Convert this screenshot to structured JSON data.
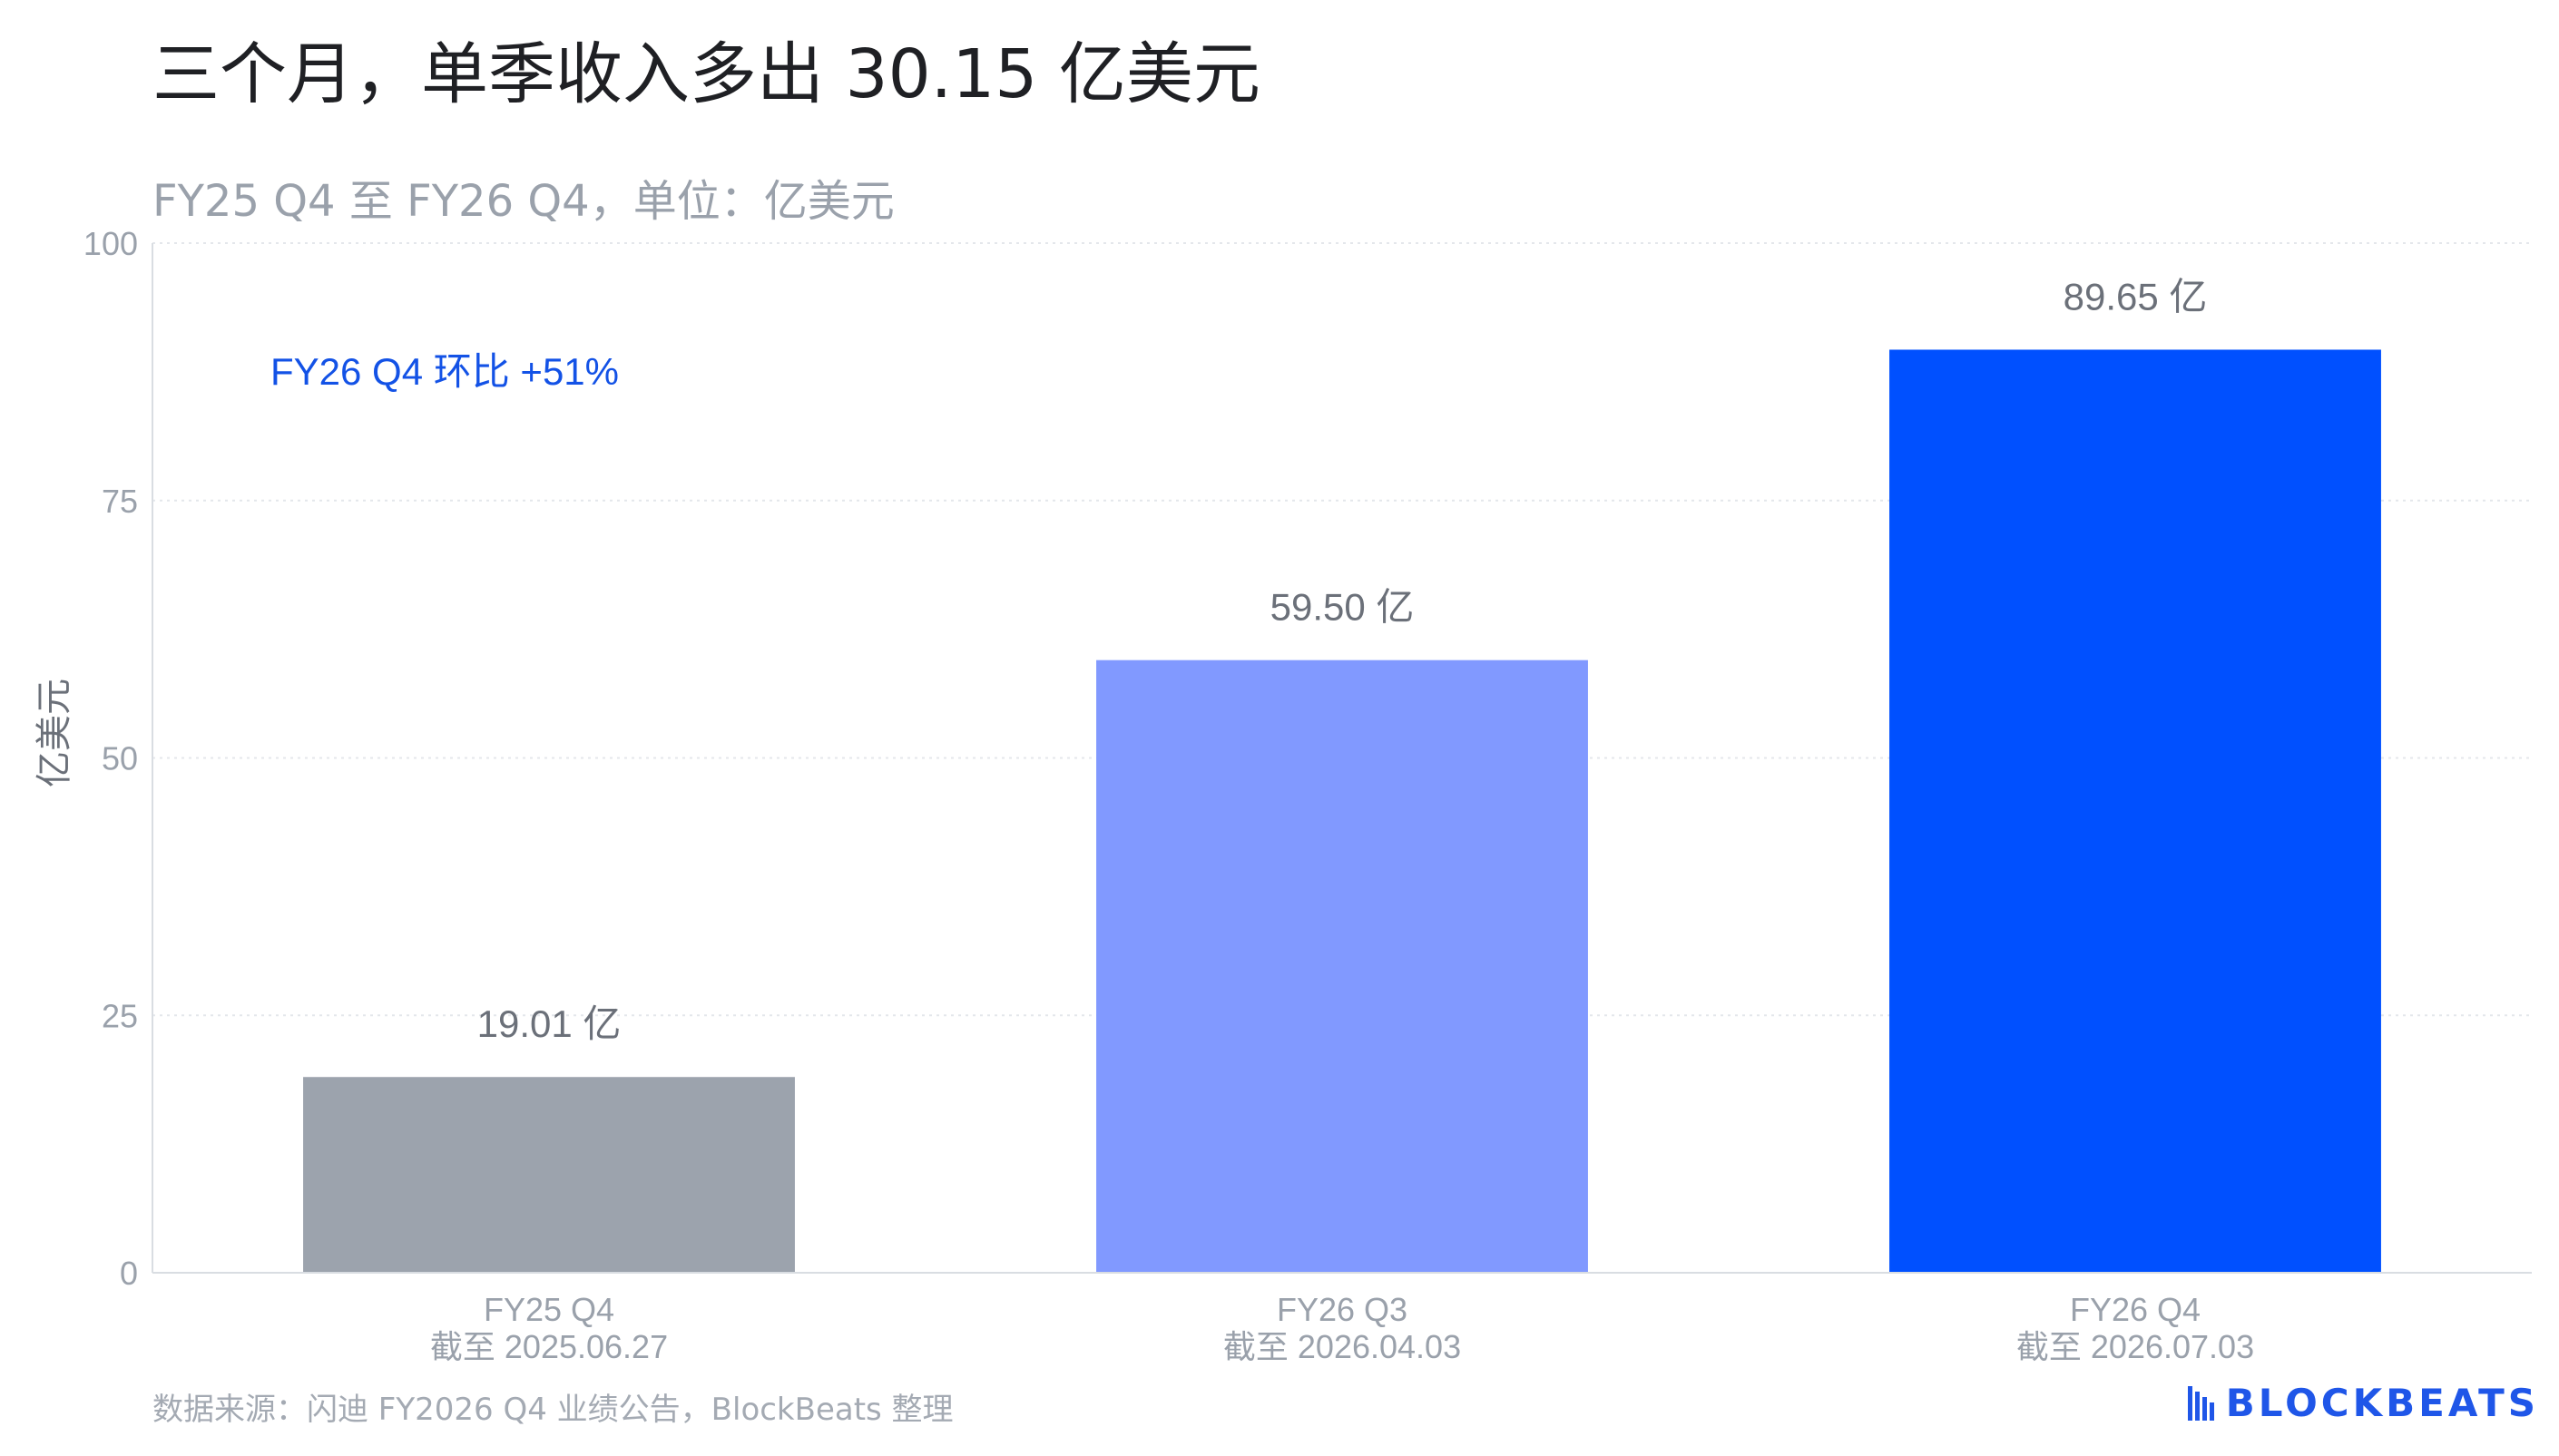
{
  "title": "三个月，单季收入多出 30.15 亿美元",
  "subtitle": "FY25 Q4 至 FY26 Q4，单位：亿美元",
  "source": "数据来源：闪迪 FY2026 Q4 业绩公告，BlockBeats 整理",
  "brand": {
    "name": "BLOCKBEATS",
    "icon": "blockbeats-logo-icon",
    "color": "#1f56e8"
  },
  "chart_data": {
    "type": "bar",
    "ylabel": "亿美元",
    "ylim": [
      0,
      100
    ],
    "yticks": [
      0,
      25,
      50,
      75,
      100
    ],
    "grid": true,
    "categories": [
      {
        "line1": "FY25 Q4",
        "line2": "截至 2025.06.27"
      },
      {
        "line1": "FY26 Q3",
        "line2": "截至 2026.04.03"
      },
      {
        "line1": "FY26 Q4",
        "line2": "截至 2026.07.03"
      }
    ],
    "values": [
      19.01,
      59.5,
      89.65
    ],
    "data_labels": [
      "19.01 亿",
      "59.50 亿",
      "89.65 亿"
    ],
    "colors": [
      "#9ca3ad",
      "#8199ff",
      "#0050ff"
    ],
    "annotation": {
      "text": "FY26 Q4 环比 +51%",
      "color": "#1352e6"
    }
  }
}
